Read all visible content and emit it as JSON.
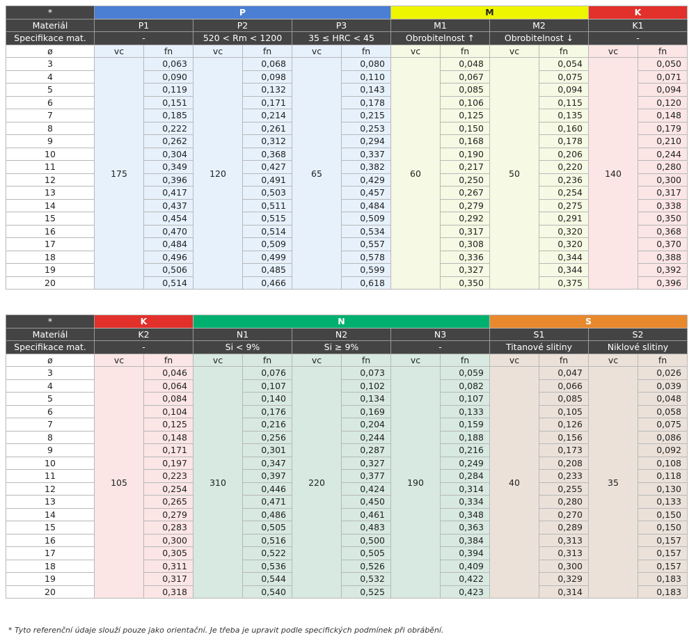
{
  "corner": "*",
  "row_labels": {
    "material": "Materiál",
    "spec": "Specifikace mat.",
    "diameter": "ø",
    "vc": "vc",
    "fn": "fn"
  },
  "diameters": [
    "3",
    "4",
    "5",
    "6",
    "7",
    "8",
    "9",
    "10",
    "11",
    "12",
    "13",
    "14",
    "15",
    "16",
    "17",
    "18",
    "19",
    "20"
  ],
  "tables": [
    {
      "groups": [
        {
          "label": "P",
          "color": "#4a7fd3",
          "text": "#ffffff",
          "span": 3
        },
        {
          "label": "M",
          "color": "#eef500",
          "text": "#222222",
          "span": 2
        },
        {
          "label": "K",
          "color": "#e2302b",
          "text": "#ffffff",
          "span": 1
        }
      ],
      "materials": [
        {
          "name": "P1",
          "spec": "-",
          "fill": "#e6f1fc",
          "vc": "175",
          "fn": [
            "0,063",
            "0,090",
            "0,119",
            "0,151",
            "0,185",
            "0,222",
            "0,262",
            "0,304",
            "0,349",
            "0,396",
            "0,417",
            "0,437",
            "0,454",
            "0,470",
            "0,484",
            "0,496",
            "0,506",
            "0,514"
          ]
        },
        {
          "name": "P2",
          "spec": "520 < Rm < 1200",
          "fill": "#e6f1fc",
          "vc": "120",
          "fn": [
            "0,068",
            "0,098",
            "0,132",
            "0,171",
            "0,214",
            "0,261",
            "0,312",
            "0,368",
            "0,427",
            "0,491",
            "0,503",
            "0,511",
            "0,515",
            "0,514",
            "0,509",
            "0,499",
            "0,485",
            "0,466"
          ]
        },
        {
          "name": "P3",
          "spec": "35 ≤ HRC < 45",
          "fill": "#e6f1fc",
          "vc": "65",
          "fn": [
            "0,080",
            "0,110",
            "0,143",
            "0,178",
            "0,215",
            "0,253",
            "0,294",
            "0,337",
            "0,382",
            "0,429",
            "0,457",
            "0,484",
            "0,509",
            "0,534",
            "0,557",
            "0,578",
            "0,599",
            "0,618"
          ]
        },
        {
          "name": "M1",
          "spec": "Obrobitelnost ↑",
          "fill": "#f6f9e3",
          "vc": "60",
          "fn": [
            "0,048",
            "0,067",
            "0,085",
            "0,106",
            "0,125",
            "0,150",
            "0,168",
            "0,190",
            "0,217",
            "0,250",
            "0,267",
            "0,279",
            "0,292",
            "0,317",
            "0,308",
            "0,336",
            "0,327",
            "0,350"
          ]
        },
        {
          "name": "M2",
          "spec": "Obrobitelnost ↓",
          "fill": "#f6f9e3",
          "vc": "50",
          "fn": [
            "0,054",
            "0,075",
            "0,094",
            "0,115",
            "0,135",
            "0,160",
            "0,178",
            "0,206",
            "0,220",
            "0,236",
            "0,254",
            "0,275",
            "0,291",
            "0,320",
            "0,320",
            "0,344",
            "0,344",
            "0,375"
          ]
        },
        {
          "name": "K1",
          "spec": "-",
          "fill": "#fbe5e5",
          "vc": "140",
          "fn": [
            "0,050",
            "0,071",
            "0,094",
            "0,120",
            "0,148",
            "0,179",
            "0,210",
            "0,244",
            "0,280",
            "0,300",
            "0,317",
            "0,338",
            "0,350",
            "0,368",
            "0,370",
            "0,388",
            "0,392",
            "0,396"
          ]
        }
      ]
    },
    {
      "groups": [
        {
          "label": "K",
          "color": "#e2302b",
          "text": "#ffffff",
          "span": 1
        },
        {
          "label": "N",
          "color": "#00b06e",
          "text": "#ffffff",
          "span": 3
        },
        {
          "label": "S",
          "color": "#e8892d",
          "text": "#ffffff",
          "span": 2
        }
      ],
      "materials": [
        {
          "name": "K2",
          "spec": "-",
          "fill": "#fbe5e5",
          "vc": "105",
          "fn": [
            "0,046",
            "0,064",
            "0,084",
            "0,104",
            "0,125",
            "0,148",
            "0,171",
            "0,197",
            "0,223",
            "0,254",
            "0,265",
            "0,279",
            "0,283",
            "0,300",
            "0,305",
            "0,311",
            "0,317",
            "0,318"
          ]
        },
        {
          "name": "N1",
          "spec": "Si < 9%",
          "fill": "#d7e9e0",
          "vc": "310",
          "fn": [
            "0,076",
            "0,107",
            "0,140",
            "0,176",
            "0,216",
            "0,256",
            "0,301",
            "0,347",
            "0,397",
            "0,446",
            "0,471",
            "0,486",
            "0,505",
            "0,516",
            "0,522",
            "0,536",
            "0,544",
            "0,540"
          ]
        },
        {
          "name": "N2",
          "spec": "Si ≥ 9%",
          "fill": "#d7e9e0",
          "vc": "220",
          "fn": [
            "0,073",
            "0,102",
            "0,134",
            "0,169",
            "0,204",
            "0,244",
            "0,287",
            "0,327",
            "0,377",
            "0,424",
            "0,450",
            "0,461",
            "0,483",
            "0,500",
            "0,505",
            "0,526",
            "0,532",
            "0,525"
          ]
        },
        {
          "name": "N3",
          "spec": "-",
          "fill": "#d7e9e0",
          "vc": "190",
          "fn": [
            "0,059",
            "0,082",
            "0,107",
            "0,133",
            "0,159",
            "0,188",
            "0,216",
            "0,249",
            "0,284",
            "0,314",
            "0,334",
            "0,348",
            "0,363",
            "0,384",
            "0,394",
            "0,409",
            "0,422",
            "0,423"
          ]
        },
        {
          "name": "S1",
          "spec": "Titanové slitiny",
          "fill": "#ebe1d9",
          "vc": "40",
          "fn": [
            "0,047",
            "0,066",
            "0,085",
            "0,105",
            "0,126",
            "0,156",
            "0,173",
            "0,208",
            "0,233",
            "0,255",
            "0,280",
            "0,270",
            "0,289",
            "0,313",
            "0,313",
            "0,300",
            "0,329",
            "0,314"
          ]
        },
        {
          "name": "S2",
          "spec": "Niklové slitiny",
          "fill": "#ebe1d9",
          "vc": "35",
          "fn": [
            "0,026",
            "0,039",
            "0,048",
            "0,058",
            "0,075",
            "0,086",
            "0,092",
            "0,108",
            "0,118",
            "0,130",
            "0,133",
            "0,150",
            "0,150",
            "0,157",
            "0,157",
            "0,157",
            "0,183",
            "0,183"
          ]
        }
      ]
    }
  ],
  "footnote": "* Tyto referenční údaje slouží pouze jako orientační. Je třeba je upravit podle specifických podmínek při obrábění."
}
